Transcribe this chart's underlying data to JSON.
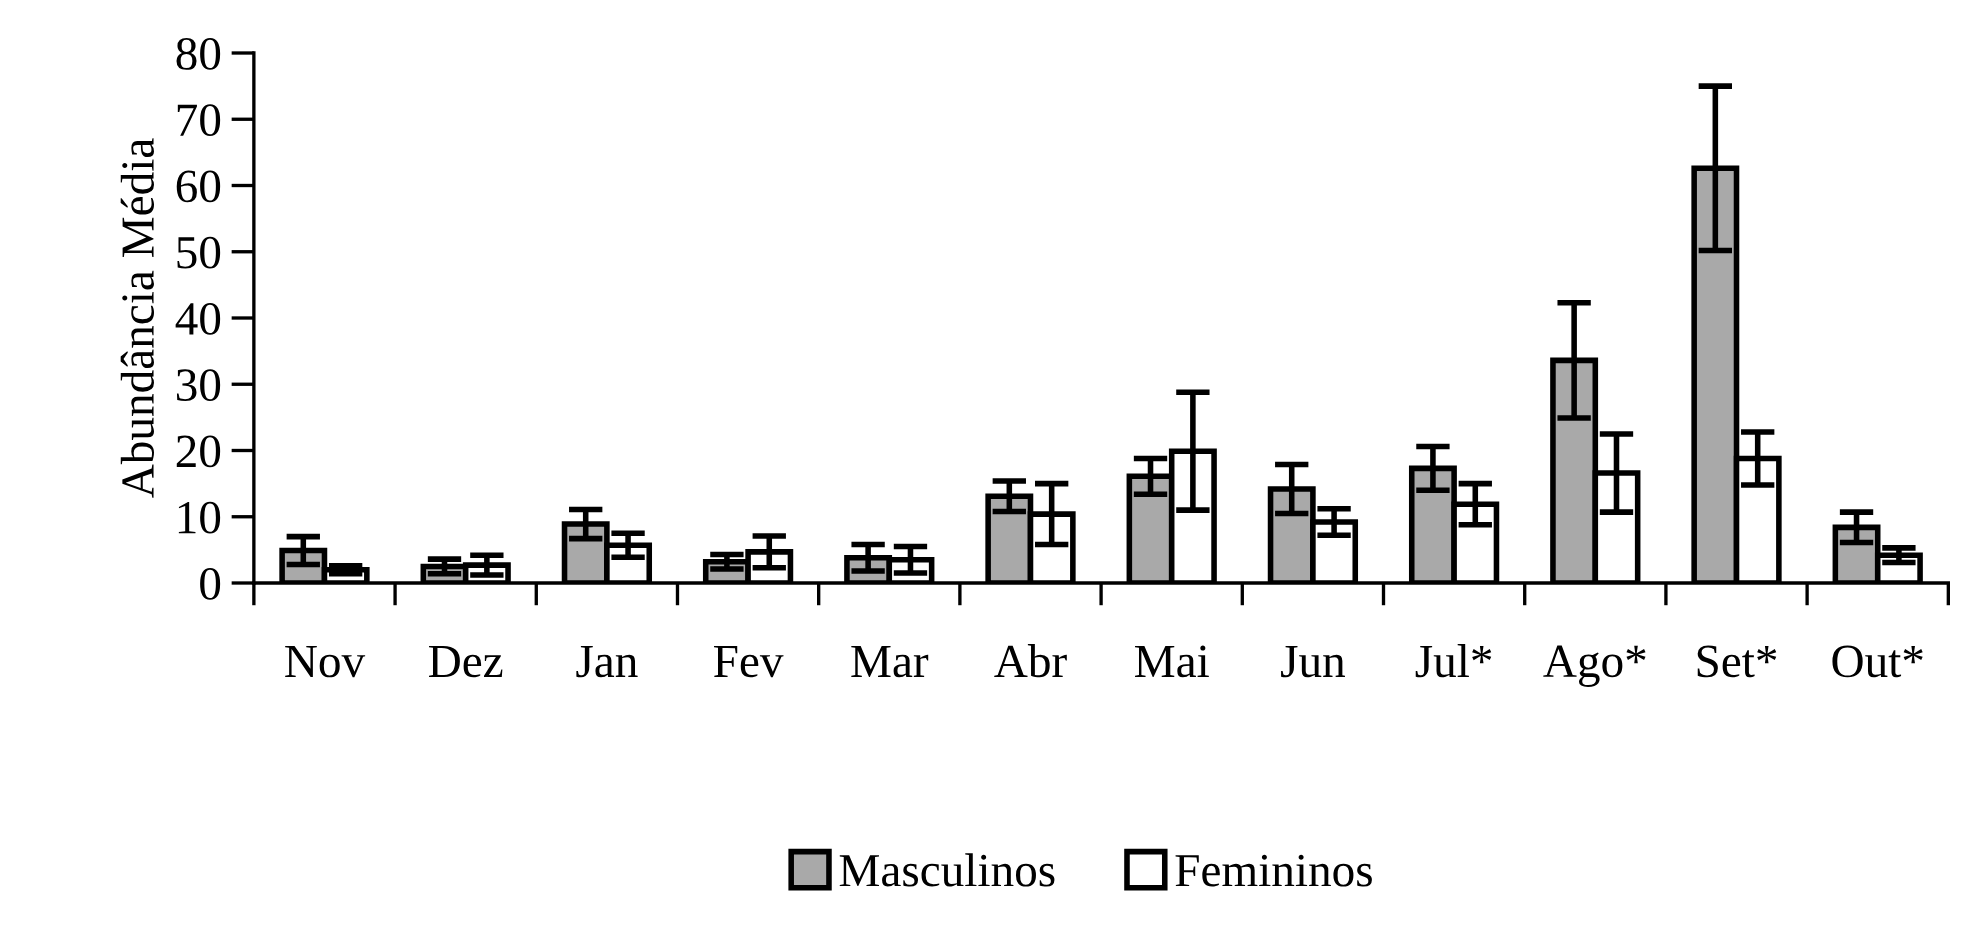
{
  "chart_data": {
    "type": "bar",
    "ylabel": "Abundância Média",
    "categories": [
      "Nov",
      "Dez",
      "Jan",
      "Fev",
      "Mar",
      "Abr",
      "Mai",
      "Jun",
      "Jul*",
      "Ago*",
      "Set*",
      "Out*"
    ],
    "series": [
      {
        "name": "Masculinos",
        "color": "#a9a9a9",
        "values": [
          4.9,
          2.5,
          8.9,
          3.2,
          3.8,
          13.1,
          16.1,
          14.2,
          17.3,
          33.6,
          62.6,
          8.4
        ],
        "errors": [
          2.1,
          1.1,
          2.2,
          1.1,
          2.0,
          2.3,
          2.7,
          3.7,
          3.3,
          8.7,
          12.4,
          2.3
        ]
      },
      {
        "name": "Femininos",
        "color": "#ffffff",
        "values": [
          2.0,
          2.7,
          5.7,
          4.7,
          3.5,
          10.4,
          19.9,
          9.2,
          11.9,
          16.6,
          18.8,
          4.2
        ],
        "errors": [
          0.6,
          1.5,
          1.8,
          2.4,
          2.0,
          4.6,
          8.9,
          2.0,
          3.1,
          5.9,
          4.0,
          1.1
        ]
      }
    ],
    "ylim": [
      0,
      80
    ],
    "yticks": [
      0,
      10,
      20,
      30,
      40,
      50,
      60,
      70,
      80
    ],
    "grid": false,
    "legend": "bottom"
  }
}
